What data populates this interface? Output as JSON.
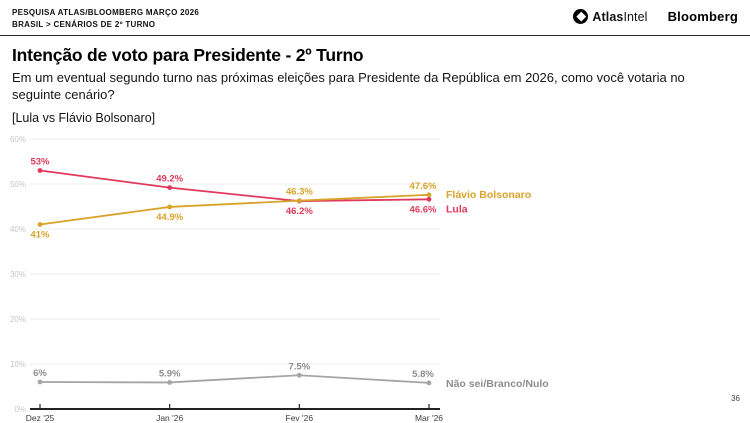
{
  "header": {
    "kicker": "PESQUISA ATLAS/BLOOMBERG MARÇO 2026",
    "breadcrumb": "BRASIL > CENÁRIOS DE 2º TURNO",
    "logos": {
      "atlas_bold": "Atlas",
      "atlas_rest": "Intel",
      "bloomberg": "Bloomberg"
    }
  },
  "main": {
    "title": "Intenção de voto para Presidente - 2º Turno",
    "question": "Em um eventual segundo turno nas próximas eleições para Presidente da República em 2026, como você votaria no seguinte cenário?",
    "scenario": "[Lula vs Flávio Bolsonaro]"
  },
  "chart_data": {
    "type": "line",
    "x_labels": [
      "Dez '25",
      "Jan '26",
      "Fev '26",
      "Mar '26"
    ],
    "ylim": [
      0,
      60
    ],
    "yticks": [
      0,
      10,
      20,
      30,
      40,
      50,
      60
    ],
    "grid": true,
    "legend_position": "right-of-last-point",
    "colors": {
      "lula": "#e0395c",
      "flavio_bolsonaro": "#d8a32a",
      "nao_sei": "#a5a5a5"
    },
    "series": [
      {
        "name": "Lula",
        "color": "#e0395c",
        "values": [
          53,
          49.2,
          46.2,
          46.6
        ],
        "point_labels": [
          "53%",
          "49.2%",
          "46.2%",
          "46.6%"
        ],
        "label_side": [
          "above",
          "above",
          "below",
          "below"
        ],
        "legend_dy": 13
      },
      {
        "name": "Flávio Bolsonaro",
        "color": "#d8a32a",
        "values": [
          41,
          44.9,
          46.3,
          47.6
        ],
        "point_labels": [
          "41%",
          "44.9%",
          "46.3%",
          "47.6%"
        ],
        "label_side": [
          "below",
          "below",
          "above",
          "above"
        ],
        "legend_dy": 3
      },
      {
        "name": "Não sei/Branco/Nulo",
        "color": "#a5a5a5",
        "label_color": "#8d8d8d",
        "values": [
          6,
          5.9,
          7.5,
          5.8
        ],
        "point_labels": [
          "6%",
          "5.9%",
          "7.5%",
          "5.8%"
        ],
        "label_side": [
          "above",
          "above",
          "above",
          "above"
        ],
        "legend_dy": 4
      }
    ]
  },
  "footer": {
    "page_number": "36"
  }
}
